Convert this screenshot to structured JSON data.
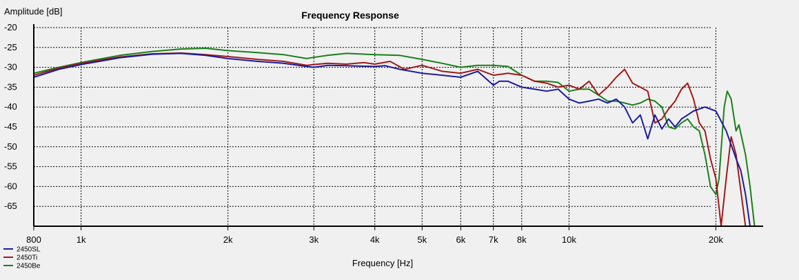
{
  "chart_data": {
    "type": "line",
    "title": "Frequency Response",
    "xlabel": "Frequency [Hz]",
    "ylabel": "Amplitude [dB]",
    "xscale": "log",
    "xlim": [
      800,
      25000
    ],
    "ylim": [
      -70,
      -20
    ],
    "grid": true,
    "legend_position": "bottom-left",
    "x_ticks": [
      {
        "value": 800,
        "label": "800"
      },
      {
        "value": 1000,
        "label": "1k"
      },
      {
        "value": 2000,
        "label": "2k"
      },
      {
        "value": 3000,
        "label": "3k"
      },
      {
        "value": 4000,
        "label": "4k"
      },
      {
        "value": 5000,
        "label": "5k"
      },
      {
        "value": 6000,
        "label": "6k"
      },
      {
        "value": 7000,
        "label": "7k"
      },
      {
        "value": 8000,
        "label": "8k"
      },
      {
        "value": 10000,
        "label": "10k"
      },
      {
        "value": 20000,
        "label": "20k"
      }
    ],
    "y_ticks": [
      -20,
      -25,
      -30,
      -35,
      -40,
      -45,
      -50,
      -55,
      -60,
      -65
    ],
    "series": [
      {
        "name": "2450SL",
        "color": "#1a1aa0",
        "points": [
          [
            800,
            -32.5
          ],
          [
            900,
            -30.5
          ],
          [
            1000,
            -29.3
          ],
          [
            1200,
            -27.6
          ],
          [
            1400,
            -26.7
          ],
          [
            1600,
            -26.5
          ],
          [
            1800,
            -27.0
          ],
          [
            2000,
            -27.8
          ],
          [
            2300,
            -28.5
          ],
          [
            2600,
            -29.0
          ],
          [
            2900,
            -29.8
          ],
          [
            3000,
            -30.0
          ],
          [
            3200,
            -29.5
          ],
          [
            3500,
            -29.6
          ],
          [
            4000,
            -29.8
          ],
          [
            4200,
            -29.6
          ],
          [
            4500,
            -30.5
          ],
          [
            5000,
            -31.5
          ],
          [
            5500,
            -32.0
          ],
          [
            6000,
            -32.5
          ],
          [
            6500,
            -31.0
          ],
          [
            7000,
            -34.5
          ],
          [
            7200,
            -33.5
          ],
          [
            7500,
            -33.5
          ],
          [
            8000,
            -35.0
          ],
          [
            8500,
            -35.5
          ],
          [
            9000,
            -36.0
          ],
          [
            9500,
            -35.5
          ],
          [
            10000,
            -38.0
          ],
          [
            10500,
            -39.0
          ],
          [
            11000,
            -38.5
          ],
          [
            11500,
            -38.0
          ],
          [
            12000,
            -39.0
          ],
          [
            12500,
            -38.0
          ],
          [
            13000,
            -40.0
          ],
          [
            13500,
            -44.0
          ],
          [
            14000,
            -42.0
          ],
          [
            14500,
            -48.0
          ],
          [
            15000,
            -42.0
          ],
          [
            15500,
            -45.5
          ],
          [
            16000,
            -43.0
          ],
          [
            16500,
            -45.0
          ],
          [
            17000,
            -43.0
          ],
          [
            17500,
            -42.0
          ],
          [
            18000,
            -41.0
          ],
          [
            18500,
            -40.5
          ],
          [
            19000,
            -40.0
          ],
          [
            20000,
            -41.0
          ],
          [
            21000,
            -46.0
          ],
          [
            22000,
            -53.0
          ],
          [
            22500,
            -56.0
          ],
          [
            23000,
            -62.0
          ],
          [
            23500,
            -70.0
          ]
        ]
      },
      {
        "name": "2450Ti",
        "color": "#a01818",
        "points": [
          [
            800,
            -32.0
          ],
          [
            900,
            -30.2
          ],
          [
            1000,
            -29.0
          ],
          [
            1200,
            -27.4
          ],
          [
            1400,
            -26.6
          ],
          [
            1600,
            -26.4
          ],
          [
            1800,
            -26.8
          ],
          [
            2000,
            -27.3
          ],
          [
            2300,
            -28.0
          ],
          [
            2600,
            -28.5
          ],
          [
            2900,
            -29.5
          ],
          [
            3000,
            -29.3
          ],
          [
            3200,
            -29.0
          ],
          [
            3500,
            -29.2
          ],
          [
            3800,
            -28.8
          ],
          [
            4000,
            -29.2
          ],
          [
            4300,
            -28.5
          ],
          [
            4600,
            -30.5
          ],
          [
            5000,
            -29.5
          ],
          [
            5500,
            -31.0
          ],
          [
            6000,
            -31.5
          ],
          [
            6500,
            -30.5
          ],
          [
            7000,
            -32.0
          ],
          [
            7500,
            -31.5
          ],
          [
            8000,
            -32.0
          ],
          [
            8500,
            -33.5
          ],
          [
            9000,
            -34.0
          ],
          [
            9500,
            -35.0
          ],
          [
            10000,
            -34.5
          ],
          [
            10500,
            -35.5
          ],
          [
            11000,
            -33.5
          ],
          [
            11500,
            -37.0
          ],
          [
            12000,
            -35.0
          ],
          [
            12500,
            -32.5
          ],
          [
            13000,
            -30.5
          ],
          [
            13500,
            -34.0
          ],
          [
            14000,
            -35.0
          ],
          [
            14500,
            -36.0
          ],
          [
            15000,
            -44.0
          ],
          [
            15500,
            -43.0
          ],
          [
            16000,
            -40.5
          ],
          [
            16500,
            -38.5
          ],
          [
            17000,
            -35.5
          ],
          [
            17500,
            -34.0
          ],
          [
            18000,
            -38.0
          ],
          [
            18500,
            -44.0
          ],
          [
            19000,
            -46.0
          ],
          [
            19500,
            -53.0
          ],
          [
            20000,
            -58.0
          ],
          [
            20500,
            -70.0
          ],
          [
            21000,
            -58.0
          ],
          [
            21500,
            -47.5
          ],
          [
            22000,
            -52.0
          ],
          [
            23000,
            -70.0
          ]
        ]
      },
      {
        "name": "2450Be",
        "color": "#188018",
        "points": [
          [
            800,
            -31.5
          ],
          [
            900,
            -30.0
          ],
          [
            1000,
            -28.8
          ],
          [
            1200,
            -27.0
          ],
          [
            1400,
            -26.0
          ],
          [
            1600,
            -25.4
          ],
          [
            1800,
            -25.2
          ],
          [
            2000,
            -25.8
          ],
          [
            2300,
            -26.3
          ],
          [
            2600,
            -26.8
          ],
          [
            2900,
            -27.8
          ],
          [
            3000,
            -27.5
          ],
          [
            3200,
            -27.0
          ],
          [
            3500,
            -26.5
          ],
          [
            4000,
            -26.8
          ],
          [
            4500,
            -27.0
          ],
          [
            5000,
            -28.0
          ],
          [
            5500,
            -29.0
          ],
          [
            6000,
            -30.0
          ],
          [
            6500,
            -29.5
          ],
          [
            7000,
            -29.5
          ],
          [
            7500,
            -29.8
          ],
          [
            8000,
            -32.0
          ],
          [
            8500,
            -33.5
          ],
          [
            9000,
            -33.5
          ],
          [
            9500,
            -33.8
          ],
          [
            10000,
            -36.0
          ],
          [
            10500,
            -35.5
          ],
          [
            11000,
            -35.5
          ],
          [
            11500,
            -37.0
          ],
          [
            12000,
            -38.5
          ],
          [
            12500,
            -38.5
          ],
          [
            13000,
            -39.0
          ],
          [
            13500,
            -39.5
          ],
          [
            14000,
            -39.0
          ],
          [
            14500,
            -38.0
          ],
          [
            15000,
            -38.5
          ],
          [
            15500,
            -40.0
          ],
          [
            16000,
            -45.0
          ],
          [
            16500,
            -45.5
          ],
          [
            17000,
            -44.0
          ],
          [
            17500,
            -43.0
          ],
          [
            18000,
            -45.0
          ],
          [
            18500,
            -46.0
          ],
          [
            19000,
            -52.0
          ],
          [
            19500,
            -60.0
          ],
          [
            20000,
            -62.0
          ],
          [
            20300,
            -58.0
          ],
          [
            20800,
            -40.0
          ],
          [
            21100,
            -36.0
          ],
          [
            21500,
            -38.0
          ],
          [
            22000,
            -46.0
          ],
          [
            22300,
            -44.5
          ],
          [
            23000,
            -52.0
          ],
          [
            23500,
            -60.0
          ],
          [
            24000,
            -70.0
          ]
        ]
      }
    ]
  }
}
